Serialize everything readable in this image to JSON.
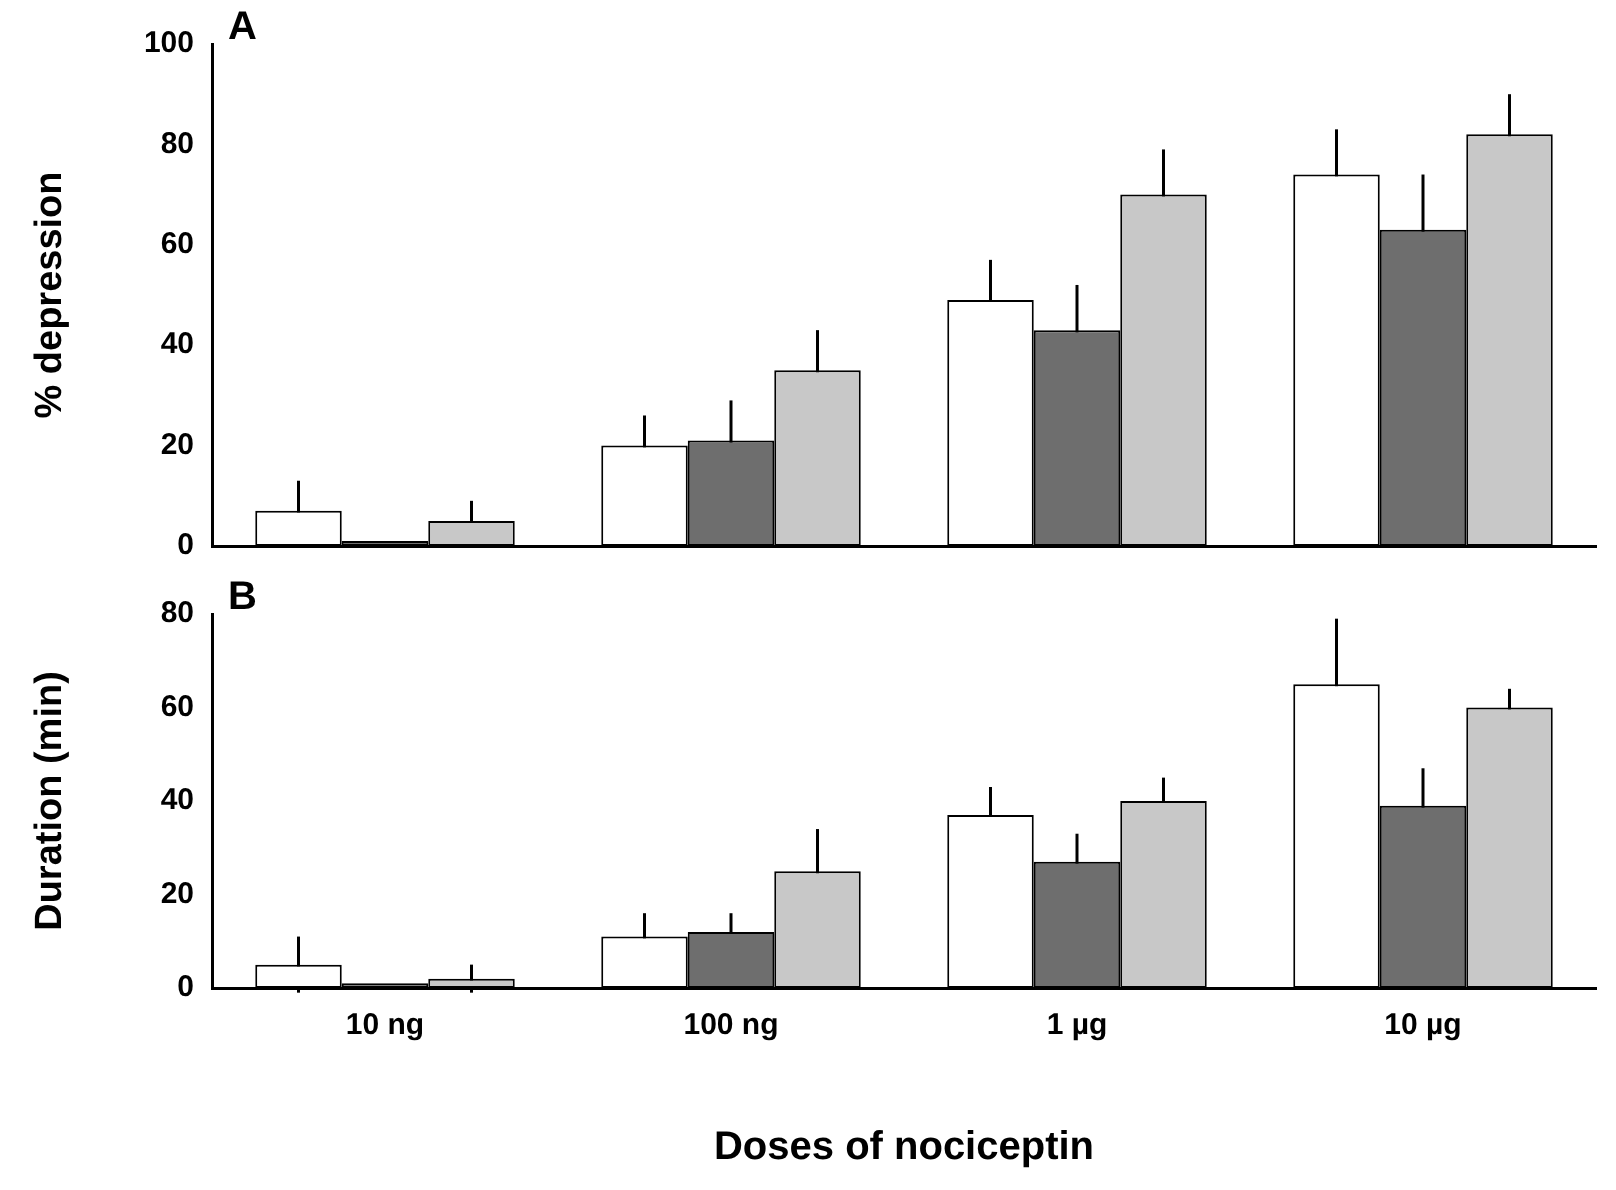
{
  "chart_data": [
    {
      "type": "bar",
      "title": "A",
      "ylabel": "% depression",
      "categories": [
        null,
        null,
        null,
        null
      ],
      "tick_labels": "y",
      "ylim": [
        0,
        100
      ],
      "yticks": [
        0,
        20,
        40,
        60,
        80,
        100
      ],
      "grid": false,
      "legend": false,
      "series": [
        {
          "color": "#ffffff",
          "values": [
            7,
            20,
            49,
            74
          ],
          "errors": [
            6,
            6,
            8,
            9
          ]
        },
        {
          "color": "#6e6e6e",
          "values": [
            1,
            21,
            43,
            63
          ],
          "errors": [
            null,
            8,
            9,
            11
          ]
        },
        {
          "color": "#c8c8c8",
          "values": [
            5,
            35,
            70,
            82
          ],
          "errors": [
            4,
            8,
            9,
            8
          ]
        }
      ]
    },
    {
      "type": "bar",
      "title": "B",
      "ylabel": "Duration (min)",
      "xlabel": "Doses of nociceptin",
      "categories": [
        "10 ng",
        "100 ng",
        "1 µg",
        "10 µg"
      ],
      "ylim": [
        0,
        80
      ],
      "yticks": [
        0,
        20,
        40,
        60,
        80
      ],
      "grid": false,
      "legend": false,
      "series": [
        {
          "color": "#ffffff",
          "values": [
            5,
            11,
            37,
            65
          ],
          "errors": [
            6,
            5,
            6,
            14
          ]
        },
        {
          "color": "#6e6e6e",
          "values": [
            1,
            12,
            27,
            39
          ],
          "errors": [
            null,
            4,
            6,
            8
          ]
        },
        {
          "color": "#c8c8c8",
          "values": [
            2,
            25,
            40,
            60
          ],
          "errors": [
            3,
            9,
            5,
            4
          ]
        }
      ]
    }
  ]
}
